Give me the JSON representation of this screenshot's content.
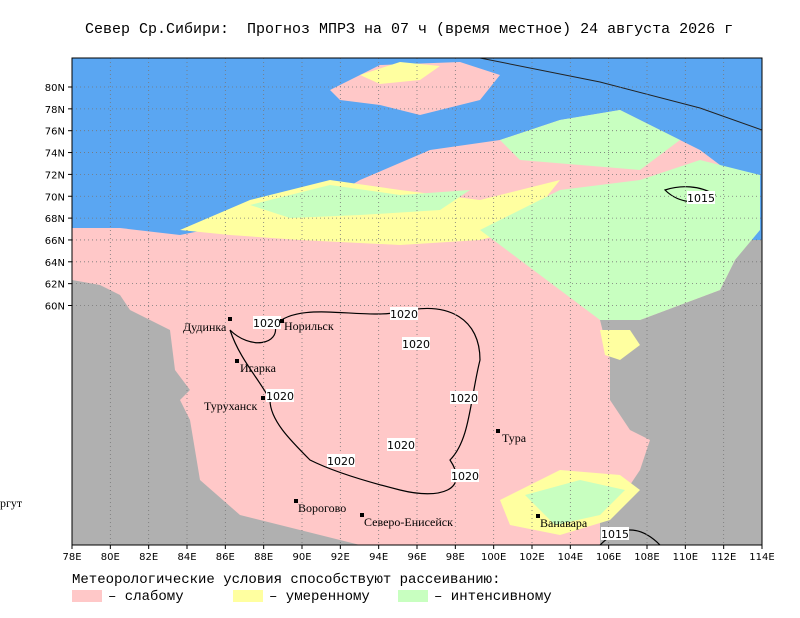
{
  "header": {
    "title": "Север Ср.Сибири:  Прогноз МПРЗ на 07 ч (время местное) 24 августа 2026 г"
  },
  "map": {
    "lat_ticks": [
      "80N",
      "78N",
      "76N",
      "74N",
      "72N",
      "70N",
      "68N",
      "66N",
      "64N",
      "62N",
      "60N"
    ],
    "lon_ticks": [
      "78E",
      "80E",
      "82E",
      "84E",
      "86E",
      "88E",
      "90E",
      "92E",
      "94E",
      "96E",
      "98E",
      "100E",
      "102E",
      "104E",
      "106E",
      "108E",
      "110E",
      "112E",
      "114E"
    ],
    "cities": [
      "Дудинка",
      "Норильск",
      "Игарка",
      "Туруханск",
      "Тура",
      "Ворогово",
      "Северо-Енисейск",
      "Ванавара"
    ],
    "isobars": [
      "1020",
      "1020",
      "1020",
      "1020",
      "1020",
      "1020",
      "1020",
      "1020",
      "1015",
      "1015"
    ],
    "edge_label": "ргут"
  },
  "legend": {
    "title": "Метеорологические условия способствуют рассеиванию:",
    "items": [
      "– слабому",
      "– умеренному",
      "– интенсивному"
    ]
  }
}
